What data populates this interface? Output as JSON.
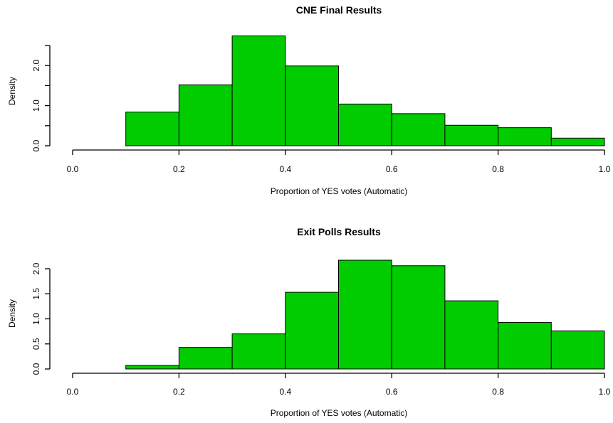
{
  "chart_data": [
    {
      "type": "bar",
      "title": "CNE Final Results",
      "xlabel": "Proportion of YES votes (Automatic)",
      "ylabel": "Density",
      "bin_edges": [
        0.1,
        0.2,
        0.3,
        0.4,
        0.5,
        0.6,
        0.7,
        0.8,
        0.9,
        1.0
      ],
      "values": [
        0.84,
        1.52,
        2.74,
        1.99,
        1.04,
        0.8,
        0.51,
        0.45,
        0.19
      ],
      "xlim": [
        0.0,
        1.0
      ],
      "ylim": [
        0.0,
        2.5
      ],
      "xticks": [
        "0.0",
        "0.2",
        "0.4",
        "0.6",
        "0.8",
        "1.0"
      ],
      "yticks": [
        "0.0",
        "1.0",
        "2.0"
      ],
      "ytick_values": [
        0.0,
        1.0,
        2.0
      ],
      "grid": false,
      "bar_color": "#00cc00"
    },
    {
      "type": "bar",
      "title": "Exit Polls Results",
      "xlabel": "Proportion of YES votes (Automatic)",
      "ylabel": "Density",
      "bin_edges": [
        0.1,
        0.2,
        0.3,
        0.4,
        0.5,
        0.6,
        0.7,
        0.8,
        0.9,
        1.0
      ],
      "values": [
        0.07,
        0.43,
        0.7,
        1.53,
        2.17,
        2.06,
        1.36,
        0.93,
        0.76
      ],
      "xlim": [
        0.0,
        1.0
      ],
      "ylim": [
        0.0,
        2.0
      ],
      "xticks": [
        "0.0",
        "0.2",
        "0.4",
        "0.6",
        "0.8",
        "1.0"
      ],
      "yticks": [
        "0.0",
        "0.5",
        "1.0",
        "1.5",
        "2.0"
      ],
      "ytick_values": [
        0.0,
        0.5,
        1.0,
        1.5,
        2.0
      ],
      "grid": false,
      "bar_color": "#00cc00"
    }
  ]
}
